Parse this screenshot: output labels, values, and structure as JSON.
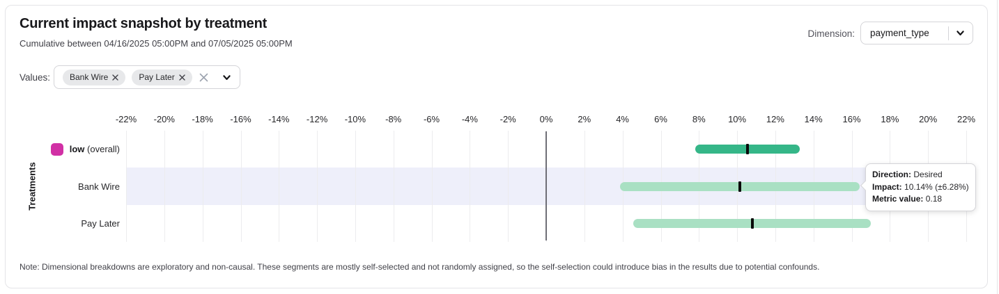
{
  "header": {
    "title": "Current impact snapshot by treatment",
    "subtitle": "Cumulative between 04/16/2025 05:00PM and 07/05/2025 05:00PM",
    "dimension": {
      "label": "Dimension:",
      "value": "payment_type"
    }
  },
  "filters": {
    "label": "Values:",
    "chips": [
      {
        "label": "Bank Wire"
      },
      {
        "label": "Pay Later"
      }
    ]
  },
  "chart_data": {
    "type": "bar",
    "variant": "horizontal_interval_bars",
    "ylabel": "Treatments",
    "x_unit": "%",
    "x_range": [
      -22,
      22
    ],
    "x_tick_labels": [
      "-22%",
      "-20%",
      "-18%",
      "-16%",
      "-14%",
      "-12%",
      "-10%",
      "-8%",
      "-6%",
      "-4%",
      "-2%",
      "0%",
      "2%",
      "4%",
      "6%",
      "8%",
      "10%",
      "12%",
      "14%",
      "16%",
      "18%",
      "20%",
      "22%"
    ],
    "zero_line": 0,
    "grid": true,
    "rows": [
      {
        "label": "low",
        "suffix": " (overall)",
        "bold_label": true,
        "swatch_color": "#d130a5",
        "bar_color": "#35b688",
        "interval_low": 7.8,
        "interval_high": 13.3,
        "point": 10.55,
        "highlighted": false
      },
      {
        "label": "Bank Wire",
        "suffix": "",
        "bold_label": false,
        "swatch_color": null,
        "bar_color": "#a9e0c3",
        "interval_low": 3.86,
        "interval_high": 16.42,
        "point": 10.14,
        "highlighted": true
      },
      {
        "label": "Pay Later",
        "suffix": "",
        "bold_label": false,
        "swatch_color": null,
        "bar_color": "#a9e0c3",
        "interval_low": 4.57,
        "interval_high": 17.01,
        "point": 10.79,
        "highlighted": false
      }
    ]
  },
  "tooltip": {
    "lines": [
      {
        "label": "Direction:",
        "value": "Desired"
      },
      {
        "label": "Impact:",
        "value": "10.14% (±6.28%)"
      },
      {
        "label": "Metric value:",
        "value": "0.18"
      }
    ]
  },
  "note": "Note: Dimensional breakdowns are exploratory and non-causal. These segments are mostly self-selected and not randomly assigned, so the self-selection could introduce bias in the results due to potential confounds.",
  "colors": {
    "row_highlight": "#eeeffa",
    "point_marker": "#0a0a0a",
    "gridline": "#ececee",
    "zero_line": "#6e6e76"
  }
}
